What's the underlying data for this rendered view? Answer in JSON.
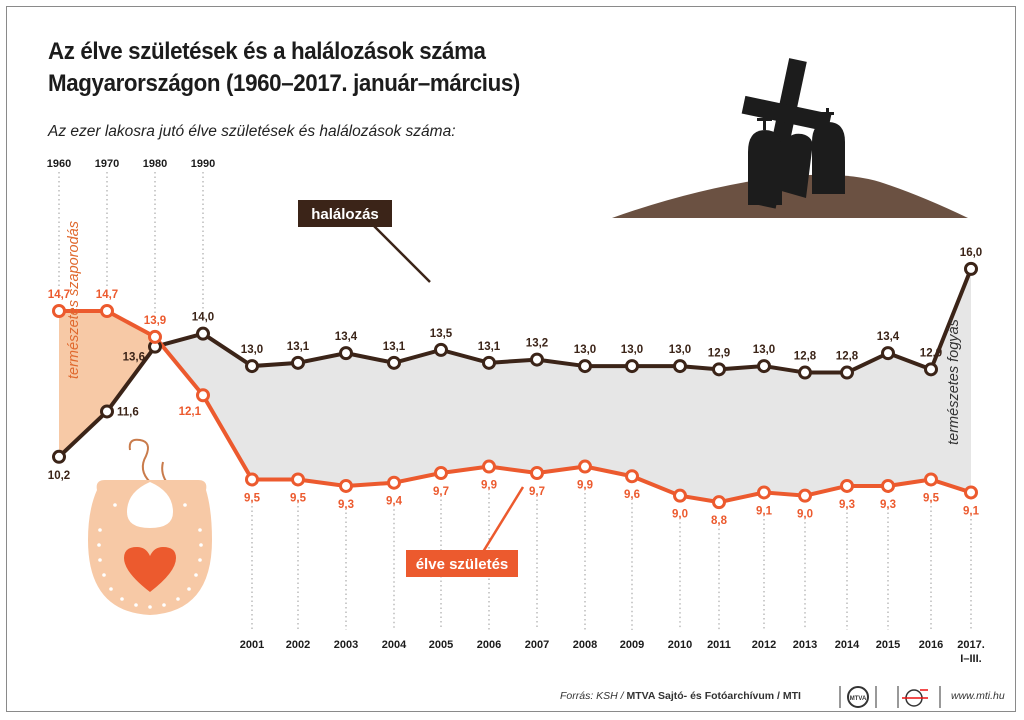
{
  "title_line1": "Az élve születések és a halálozások száma",
  "title_line2": "Magyarországon (1960–2017. január–március)",
  "subtitle": "Az ezer lakosra jutó élve születések és halálozások száma:",
  "chart_data": {
    "type": "line",
    "x": [
      "1960",
      "1970",
      "1980",
      "1990",
      "2001",
      "2002",
      "2003",
      "2004",
      "2005",
      "2006",
      "2007",
      "2008",
      "2009",
      "2010",
      "2011",
      "2012",
      "2013",
      "2014",
      "2015",
      "2016",
      "2017. I–III."
    ],
    "x_labels_top": [
      "1960",
      "1970",
      "1980",
      "1990"
    ],
    "x_labels_bottom": [
      "2001",
      "2002",
      "2003",
      "2004",
      "2005",
      "2006",
      "2007",
      "2008",
      "2009",
      "2010",
      "2011",
      "2012",
      "2013",
      "2014",
      "2015",
      "2016",
      "2017."
    ],
    "x_label_last_line2": "I–III.",
    "series": [
      {
        "name": "halálozás",
        "color": "#3b2418",
        "values": [
          10.2,
          11.6,
          13.6,
          14.0,
          13.0,
          13.1,
          13.4,
          13.1,
          13.5,
          13.1,
          13.2,
          13.0,
          13.0,
          13.0,
          12.9,
          13.0,
          12.8,
          12.8,
          13.4,
          12.9,
          16.0
        ],
        "labels": [
          "10,2",
          "11,6",
          "13,6",
          "14,0",
          "13,0",
          "13,1",
          "13,4",
          "13,1",
          "13,5",
          "13,1",
          "13,2",
          "13,0",
          "13,0",
          "13,0",
          "12,9",
          "13,0",
          "12,8",
          "12,8",
          "13,4",
          "12,9",
          "16,0"
        ]
      },
      {
        "name": "élve születés",
        "color": "#ec5a2e",
        "values": [
          14.7,
          14.7,
          13.9,
          12.1,
          9.5,
          9.5,
          9.3,
          9.4,
          9.7,
          9.9,
          9.7,
          9.9,
          9.6,
          9.0,
          8.8,
          9.1,
          9.0,
          9.3,
          9.3,
          9.5,
          9.1
        ],
        "labels": [
          "14,7",
          "14,7",
          "13,9",
          "12,1",
          "9,5",
          "9,5",
          "9,3",
          "9,4",
          "9,7",
          "9,9",
          "9,7",
          "9,9",
          "9,6",
          "9,0",
          "8,8",
          "9,1",
          "9,0",
          "9,3",
          "9,3",
          "9,5",
          "9,1"
        ]
      }
    ],
    "annotations": {
      "natural_increase": "természetes szaporodás",
      "natural_decrease": "természetes fogyás",
      "deaths_callout": "halálozás",
      "births_callout": "élve születés"
    },
    "colors": {
      "increase_area": "#f7c9a6",
      "decrease_area": "#e6e6e6"
    }
  },
  "footer": {
    "source_prefix": "Forrás: KSH / ",
    "source_bold": "MTVA Sajtó- és Fotóarchívum / MTI",
    "logo_text": "MTVA",
    "url": "www.mti.hu"
  }
}
